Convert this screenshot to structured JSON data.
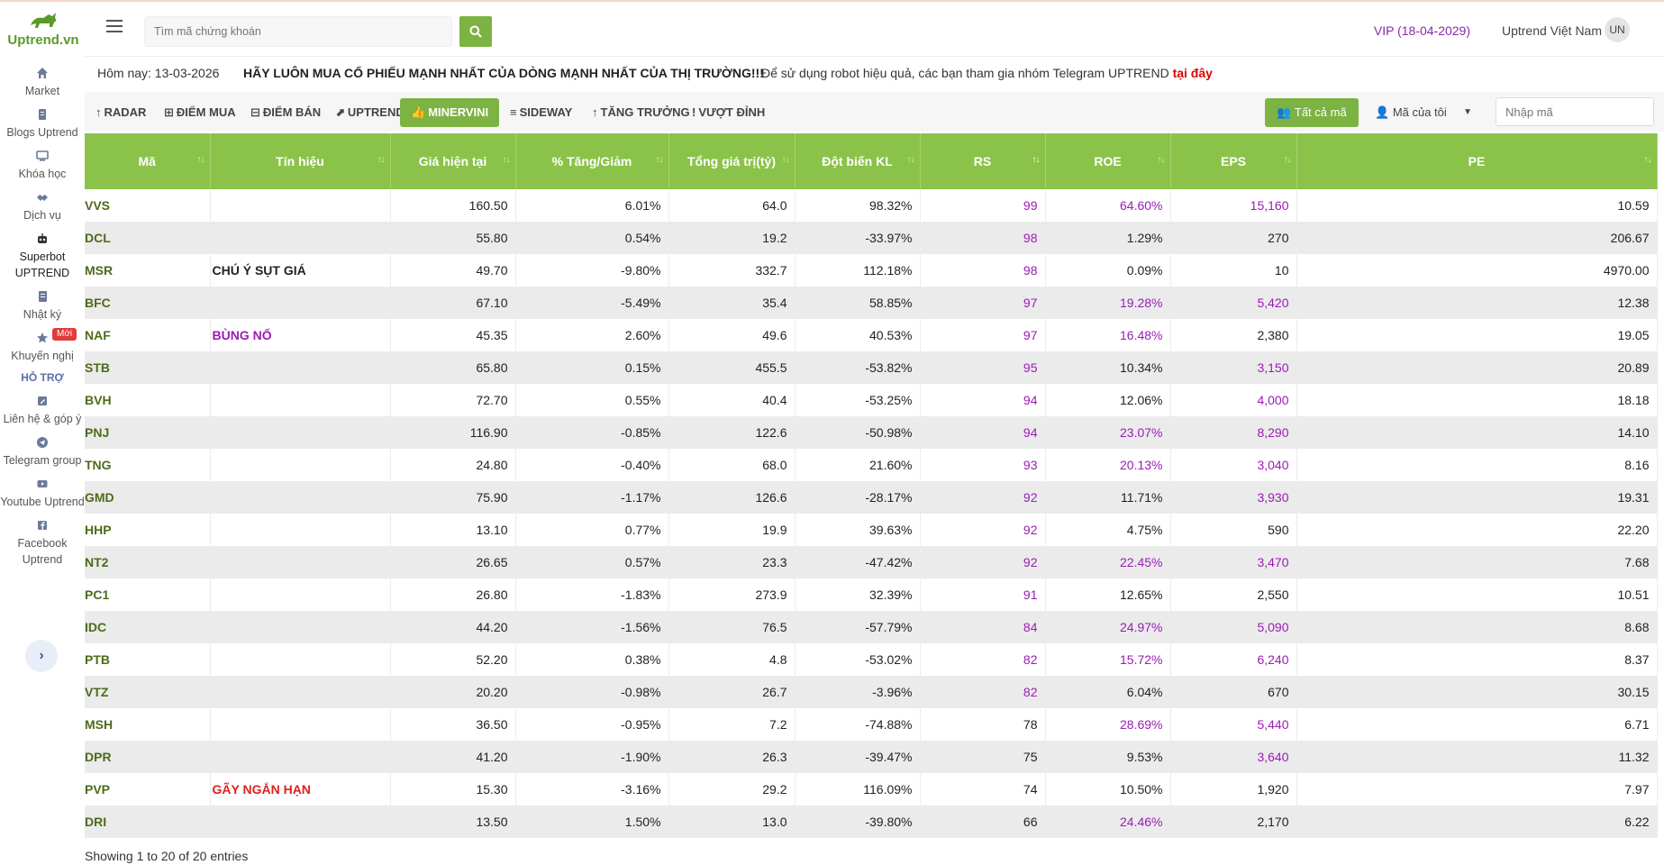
{
  "brand": {
    "name": "Uptrend.vn",
    "color": "#5a9a2a"
  },
  "sidebar": {
    "items": [
      {
        "icon": "home-icon",
        "label": "Market"
      },
      {
        "icon": "document-icon",
        "label": "Blogs Uptrend"
      },
      {
        "icon": "monitor-icon",
        "label": "Khóa học"
      },
      {
        "icon": "handshake-icon",
        "label": "Dịch vụ"
      },
      {
        "icon": "robot-icon",
        "label": "Superbot UPTREND"
      },
      {
        "icon": "notebook-icon",
        "label": "Nhật ký"
      },
      {
        "icon": "star-icon",
        "label": "Khuyến nghị",
        "badge": "Mới"
      }
    ],
    "support_title": "HỖ TRỢ",
    "support_items": [
      {
        "icon": "edit-icon",
        "label": "Liên hệ & góp ý"
      },
      {
        "icon": "telegram-icon",
        "label": "Telegram group"
      },
      {
        "icon": "youtube-icon",
        "label": "Youtube Uptrend"
      },
      {
        "icon": "facebook-icon",
        "label": "Facebook Uptrend"
      }
    ],
    "collapse_glyph": "›"
  },
  "header": {
    "search_placeholder": "Tìm mã chứng khoán",
    "vip": "VIP (18-04-2029)",
    "user_name": "Uptrend Việt Nam",
    "avatar": "UN"
  },
  "announce": {
    "date": "Hôm nay: 13-03-2026",
    "slogan": "HÃY LUÔN MUA CỔ PHIẾU MẠNH NHẤT CỦA DÒNG MẠNH NHẤT CỦA THỊ TRƯỜNG!!!",
    "note": "Để sử dụng robot hiệu quả, các bạn tham gia nhóm Telegram UPTREND ",
    "note_link": "tại đây"
  },
  "tabs": [
    {
      "label": "RADAR",
      "icon": "↑"
    },
    {
      "label": "ĐIỂM MUA",
      "icon": "⊞"
    },
    {
      "label": "ĐIỂM BÁN",
      "icon": "⊟"
    },
    {
      "label": "UPTREND",
      "icon": "⬈"
    },
    {
      "label": "MINERVINI",
      "icon": "👍"
    },
    {
      "label": "SIDEWAY",
      "icon": "≡"
    },
    {
      "label": "TĂNG TRƯỞNG",
      "icon": "↑"
    },
    {
      "label": "VƯỢT ĐỈNH",
      "icon": "!"
    }
  ],
  "filters": {
    "all_label": "Tất cả mã",
    "mine_label": "Mã của tôi",
    "code_placeholder": "Nhập mã"
  },
  "table": {
    "columns": [
      "Mã",
      "Tín hiệu",
      "Giá hiện tại",
      "% Tăng/Giảm",
      "Tổng giá trị(tỷ)",
      "Đột biến KL",
      "RS",
      "ROE",
      "EPS",
      "PE"
    ],
    "rows": [
      {
        "sym": "VVS",
        "signal": "",
        "signal_color": "",
        "price": "160.50",
        "change": "6.01%",
        "value": "64.0",
        "vol": "98.32%",
        "rs": "99",
        "roe": "64.60%",
        "eps": "15,160",
        "pe": "10.59",
        "rs_c": "purple",
        "roe_c": "purple",
        "eps_c": "purple"
      },
      {
        "sym": "DCL",
        "signal": "",
        "signal_color": "",
        "price": "55.80",
        "change": "0.54%",
        "value": "19.2",
        "vol": "-33.97%",
        "rs": "98",
        "roe": "1.29%",
        "eps": "270",
        "pe": "206.67",
        "rs_c": "purple",
        "roe_c": "dark",
        "eps_c": "dark"
      },
      {
        "sym": "MSR",
        "signal": "CHÚ Ý SỤT GIÁ",
        "signal_color": "dark",
        "price": "49.70",
        "change": "-9.80%",
        "value": "332.7",
        "vol": "112.18%",
        "rs": "98",
        "roe": "0.09%",
        "eps": "10",
        "pe": "4970.00",
        "rs_c": "purple",
        "roe_c": "dark",
        "eps_c": "dark"
      },
      {
        "sym": "BFC",
        "signal": "",
        "signal_color": "",
        "price": "67.10",
        "change": "-5.49%",
        "value": "35.4",
        "vol": "58.85%",
        "rs": "97",
        "roe": "19.28%",
        "eps": "5,420",
        "pe": "12.38",
        "rs_c": "purple",
        "roe_c": "purple",
        "eps_c": "purple"
      },
      {
        "sym": "NAF",
        "signal": "BÙNG NỔ",
        "signal_color": "purple",
        "price": "45.35",
        "change": "2.60%",
        "value": "49.6",
        "vol": "40.53%",
        "rs": "97",
        "roe": "16.48%",
        "eps": "2,380",
        "pe": "19.05",
        "rs_c": "purple",
        "roe_c": "purple",
        "eps_c": "dark"
      },
      {
        "sym": "STB",
        "signal": "",
        "signal_color": "",
        "price": "65.80",
        "change": "0.15%",
        "value": "455.5",
        "vol": "-53.82%",
        "rs": "95",
        "roe": "10.34%",
        "eps": "3,150",
        "pe": "20.89",
        "rs_c": "purple",
        "roe_c": "dark",
        "eps_c": "purple"
      },
      {
        "sym": "BVH",
        "signal": "",
        "signal_color": "",
        "price": "72.70",
        "change": "0.55%",
        "value": "40.4",
        "vol": "-53.25%",
        "rs": "94",
        "roe": "12.06%",
        "eps": "4,000",
        "pe": "18.18",
        "rs_c": "purple",
        "roe_c": "dark",
        "eps_c": "purple"
      },
      {
        "sym": "PNJ",
        "signal": "",
        "signal_color": "",
        "price": "116.90",
        "change": "-0.85%",
        "value": "122.6",
        "vol": "-50.98%",
        "rs": "94",
        "roe": "23.07%",
        "eps": "8,290",
        "pe": "14.10",
        "rs_c": "purple",
        "roe_c": "purple",
        "eps_c": "purple"
      },
      {
        "sym": "TNG",
        "signal": "",
        "signal_color": "",
        "price": "24.80",
        "change": "-0.40%",
        "value": "68.0",
        "vol": "21.60%",
        "rs": "93",
        "roe": "20.13%",
        "eps": "3,040",
        "pe": "8.16",
        "rs_c": "purple",
        "roe_c": "purple",
        "eps_c": "purple"
      },
      {
        "sym": "GMD",
        "signal": "",
        "signal_color": "",
        "price": "75.90",
        "change": "-1.17%",
        "value": "126.6",
        "vol": "-28.17%",
        "rs": "92",
        "roe": "11.71%",
        "eps": "3,930",
        "pe": "19.31",
        "rs_c": "purple",
        "roe_c": "dark",
        "eps_c": "purple"
      },
      {
        "sym": "HHP",
        "signal": "",
        "signal_color": "",
        "price": "13.10",
        "change": "0.77%",
        "value": "19.9",
        "vol": "39.63%",
        "rs": "92",
        "roe": "4.75%",
        "eps": "590",
        "pe": "22.20",
        "rs_c": "purple",
        "roe_c": "dark",
        "eps_c": "dark"
      },
      {
        "sym": "NT2",
        "signal": "",
        "signal_color": "",
        "price": "26.65",
        "change": "0.57%",
        "value": "23.3",
        "vol": "-47.42%",
        "rs": "92",
        "roe": "22.45%",
        "eps": "3,470",
        "pe": "7.68",
        "rs_c": "purple",
        "roe_c": "purple",
        "eps_c": "purple"
      },
      {
        "sym": "PC1",
        "signal": "",
        "signal_color": "",
        "price": "26.80",
        "change": "-1.83%",
        "value": "273.9",
        "vol": "32.39%",
        "rs": "91",
        "roe": "12.65%",
        "eps": "2,550",
        "pe": "10.51",
        "rs_c": "purple",
        "roe_c": "dark",
        "eps_c": "dark"
      },
      {
        "sym": "IDC",
        "signal": "",
        "signal_color": "",
        "price": "44.20",
        "change": "-1.56%",
        "value": "76.5",
        "vol": "-57.79%",
        "rs": "84",
        "roe": "24.97%",
        "eps": "5,090",
        "pe": "8.68",
        "rs_c": "purple",
        "roe_c": "purple",
        "eps_c": "purple"
      },
      {
        "sym": "PTB",
        "signal": "",
        "signal_color": "",
        "price": "52.20",
        "change": "0.38%",
        "value": "4.8",
        "vol": "-53.02%",
        "rs": "82",
        "roe": "15.72%",
        "eps": "6,240",
        "pe": "8.37",
        "rs_c": "purple",
        "roe_c": "purple",
        "eps_c": "purple"
      },
      {
        "sym": "VTZ",
        "signal": "",
        "signal_color": "",
        "price": "20.20",
        "change": "-0.98%",
        "value": "26.7",
        "vol": "-3.96%",
        "rs": "82",
        "roe": "6.04%",
        "eps": "670",
        "pe": "30.15",
        "rs_c": "purple",
        "roe_c": "dark",
        "eps_c": "dark"
      },
      {
        "sym": "MSH",
        "signal": "",
        "signal_color": "",
        "price": "36.50",
        "change": "-0.95%",
        "value": "7.2",
        "vol": "-74.88%",
        "rs": "78",
        "roe": "28.69%",
        "eps": "5,440",
        "pe": "6.71",
        "rs_c": "dark",
        "roe_c": "purple",
        "eps_c": "purple"
      },
      {
        "sym": "DPR",
        "signal": "",
        "signal_color": "",
        "price": "41.20",
        "change": "-1.90%",
        "value": "26.3",
        "vol": "-39.47%",
        "rs": "75",
        "roe": "9.53%",
        "eps": "3,640",
        "pe": "11.32",
        "rs_c": "dark",
        "roe_c": "dark",
        "eps_c": "purple"
      },
      {
        "sym": "PVP",
        "signal": "GÃY NGẮN HẠN",
        "signal_color": "red",
        "price": "15.30",
        "change": "-3.16%",
        "value": "29.2",
        "vol": "116.09%",
        "rs": "74",
        "roe": "10.50%",
        "eps": "1,920",
        "pe": "7.97",
        "rs_c": "dark",
        "roe_c": "dark",
        "eps_c": "dark"
      },
      {
        "sym": "DRI",
        "signal": "",
        "signal_color": "",
        "price": "13.50",
        "change": "1.50%",
        "value": "13.0",
        "vol": "-39.80%",
        "rs": "66",
        "roe": "24.46%",
        "eps": "2,170",
        "pe": "6.22",
        "rs_c": "dark",
        "roe_c": "purple",
        "eps_c": "dark"
      }
    ],
    "footer": "Showing 1 to 20 of 20 entries"
  },
  "colors": {
    "accent": "#7cb342",
    "header_green": "#8bc34a",
    "purple": "#9c1bb5",
    "red": "#e01f1f",
    "symbol": "#4d6b1b"
  }
}
